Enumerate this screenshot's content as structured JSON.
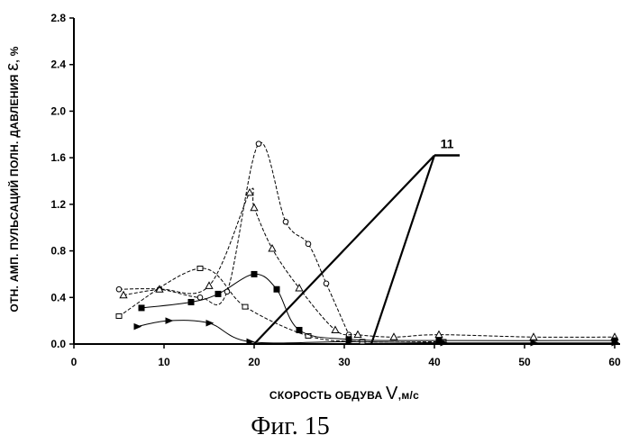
{
  "chart_data": {
    "type": "line",
    "title": "",
    "caption": "Фиг. 15",
    "xlabel_text": "СКОРОСТЬ ОБДУВА ",
    "xlabel_var": "V",
    "xlabel_unit": ",м/с",
    "ylabel_text": "ОТН. АМП. ПУЛЬСАЦИЙ ПОЛН. ДАВЛЕНИЯ ",
    "ylabel_var": "ε",
    "ylabel_unit": ", %",
    "xlim": [
      0,
      60
    ],
    "ylim": [
      0,
      2.8
    ],
    "x_ticks": [
      0,
      10,
      20,
      30,
      40,
      50,
      60
    ],
    "x_tick_labels": [
      "0",
      "10",
      "20",
      "30",
      "40",
      "50",
      "60"
    ],
    "y_ticks": [
      0,
      0.4,
      0.8,
      1.2,
      1.6,
      2.0,
      2.4,
      2.8
    ],
    "y_tick_labels": [
      "0.0",
      "0.4",
      "0.8",
      "1.2",
      "1.6",
      "2.0",
      "2.4",
      "2.8"
    ],
    "grid": false,
    "series": [
      {
        "name": "open-circles",
        "marker": "circle",
        "dashed": true,
        "x": [
          5,
          9.5,
          14,
          17,
          20.5,
          23.5,
          26,
          28,
          30.5
        ],
        "y": [
          0.47,
          0.47,
          0.4,
          0.45,
          1.72,
          1.05,
          0.86,
          0.52,
          0.08
        ]
      },
      {
        "name": "open-triangles",
        "marker": "triangle",
        "dashed": true,
        "x": [
          5.5,
          9.5,
          15,
          19.5,
          20,
          22,
          25,
          29,
          31.5,
          35.5,
          40.5,
          51,
          60
        ],
        "y": [
          0.42,
          0.47,
          0.5,
          1.3,
          1.17,
          0.82,
          0.48,
          0.12,
          0.08,
          0.06,
          0.08,
          0.06,
          0.06
        ]
      },
      {
        "name": "open-squares",
        "marker": "square",
        "dashed": true,
        "x": [
          5,
          14,
          19,
          26,
          32,
          41
        ],
        "y": [
          0.24,
          0.65,
          0.32,
          0.07,
          0.02,
          0.02
        ]
      },
      {
        "name": "filled-squares",
        "marker": "filled-square",
        "dashed": false,
        "x": [
          7.5,
          13,
          16,
          20,
          22.5,
          25,
          30.5,
          40.5,
          60
        ],
        "y": [
          0.31,
          0.36,
          0.43,
          0.6,
          0.47,
          0.12,
          0.04,
          0.03,
          0.03
        ]
      },
      {
        "name": "filled-arrows",
        "marker": "filled-triangle",
        "dashed": false,
        "x": [
          7,
          10.5,
          15,
          19.5,
          30.5,
          41,
          51,
          60
        ],
        "y": [
          0.15,
          0.2,
          0.18,
          0.02,
          0.02,
          0.01,
          0.01,
          0.01
        ]
      }
    ],
    "annotation": {
      "label": "11",
      "point": [
        40,
        1.62
      ],
      "targets": [
        [
          20,
          0
        ],
        [
          33,
          0
        ]
      ]
    }
  }
}
